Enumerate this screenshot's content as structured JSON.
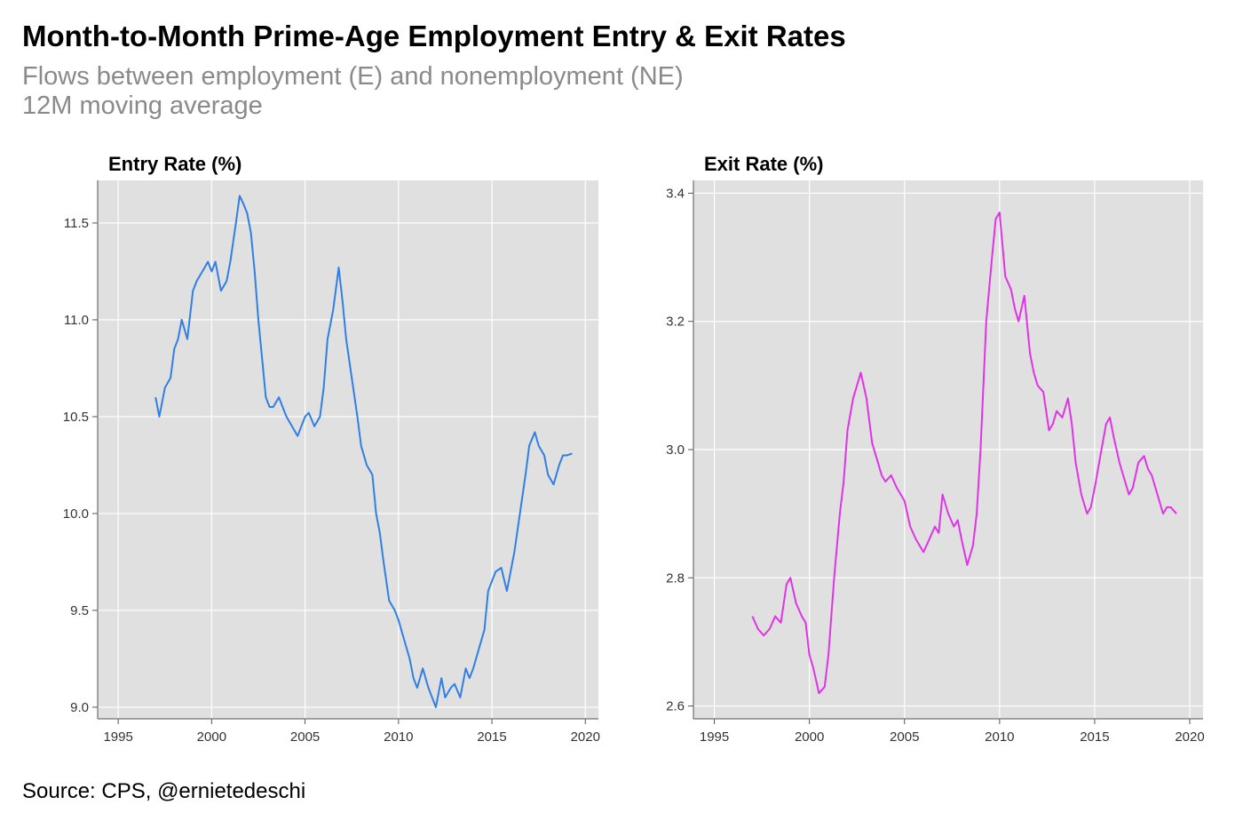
{
  "title": "Month-to-Month Prime-Age Employment Entry & Exit Rates",
  "subtitle_lines": [
    "Flows between employment (E) and nonemployment (NE)",
    "12M moving average"
  ],
  "source": "Source: CPS, @ernietedeschi",
  "chart_data": [
    {
      "type": "line",
      "title": "Entry Rate (%)",
      "xlabel": "",
      "ylabel": "",
      "xlim": [
        1993.9,
        2020.7
      ],
      "ylim": [
        8.94,
        11.72
      ],
      "xticks": [
        1995,
        2000,
        2005,
        2010,
        2015,
        2020
      ],
      "yticks": [
        9.0,
        9.5,
        10.0,
        10.5,
        11.0,
        11.5
      ],
      "ytick_labels": [
        "9.0",
        "9.5",
        "10.0",
        "10.5",
        "11.0",
        "11.5"
      ],
      "grid": true,
      "color": "#2f7fe6",
      "series": [
        {
          "x": [
            1997.0,
            1997.2,
            1997.5,
            1997.8,
            1998.0,
            1998.2,
            1998.4,
            1998.7,
            1999.0,
            1999.2,
            1999.5,
            1999.8,
            2000.0,
            2000.2,
            2000.5,
            2000.8,
            2001.0,
            2001.3,
            2001.5,
            2001.7,
            2001.9,
            2002.1,
            2002.3,
            2002.5,
            2002.7,
            2002.9,
            2003.1,
            2003.3,
            2003.6,
            2003.8,
            2004.0,
            2004.3,
            2004.6,
            2004.8,
            2005.0,
            2005.2,
            2005.5,
            2005.8,
            2006.0,
            2006.2,
            2006.5,
            2006.8,
            2007.0,
            2007.2,
            2007.5,
            2007.8,
            2008.0,
            2008.3,
            2008.6,
            2008.8,
            2009.0,
            2009.2,
            2009.5,
            2009.8,
            2010.0,
            2010.3,
            2010.6,
            2010.8,
            2011.0,
            2011.3,
            2011.6,
            2011.8,
            2012.0,
            2012.3,
            2012.5,
            2012.8,
            2013.0,
            2013.3,
            2013.6,
            2013.8,
            2014.0,
            2014.3,
            2014.6,
            2014.8,
            2015.0,
            2015.2,
            2015.5,
            2015.8,
            2016.0,
            2016.2,
            2016.5,
            2016.8,
            2017.0,
            2017.3,
            2017.5,
            2017.8,
            2018.0,
            2018.3,
            2018.6,
            2018.8,
            2019.0,
            2019.3
          ],
          "y": [
            10.6,
            10.5,
            10.65,
            10.7,
            10.85,
            10.9,
            11.0,
            10.9,
            11.15,
            11.2,
            11.25,
            11.3,
            11.25,
            11.3,
            11.15,
            11.2,
            11.3,
            11.5,
            11.64,
            11.6,
            11.55,
            11.45,
            11.25,
            11.0,
            10.8,
            10.6,
            10.55,
            10.55,
            10.6,
            10.55,
            10.5,
            10.45,
            10.4,
            10.45,
            10.5,
            10.52,
            10.45,
            10.5,
            10.65,
            10.9,
            11.05,
            11.27,
            11.1,
            10.9,
            10.7,
            10.5,
            10.35,
            10.25,
            10.2,
            10.0,
            9.9,
            9.75,
            9.55,
            9.5,
            9.45,
            9.35,
            9.25,
            9.15,
            9.1,
            9.2,
            9.1,
            9.05,
            9.0,
            9.15,
            9.05,
            9.1,
            9.12,
            9.05,
            9.2,
            9.15,
            9.2,
            9.3,
            9.4,
            9.6,
            9.65,
            9.7,
            9.72,
            9.6,
            9.7,
            9.8,
            10.0,
            10.2,
            10.35,
            10.42,
            10.35,
            10.3,
            10.2,
            10.15,
            10.25,
            10.3,
            10.3,
            10.31
          ]
        }
      ]
    },
    {
      "type": "line",
      "title": "Exit Rate (%)",
      "xlabel": "",
      "ylabel": "",
      "xlim": [
        1993.9,
        2020.7
      ],
      "ylim": [
        2.58,
        3.42
      ],
      "xticks": [
        1995,
        2000,
        2005,
        2010,
        2015,
        2020
      ],
      "yticks": [
        2.6,
        2.8,
        3.0,
        3.2,
        3.4
      ],
      "ytick_labels": [
        "2.6",
        "2.8",
        "3.0",
        "3.2",
        "3.4"
      ],
      "grid": true,
      "color": "#e033e8",
      "series": [
        {
          "x": [
            1997.0,
            1997.3,
            1997.6,
            1997.9,
            1998.2,
            1998.5,
            1998.8,
            1999.0,
            1999.3,
            1999.6,
            1999.8,
            2000.0,
            2000.2,
            2000.5,
            2000.8,
            2001.0,
            2001.3,
            2001.6,
            2001.8,
            2002.0,
            2002.3,
            2002.5,
            2002.7,
            2003.0,
            2003.3,
            2003.6,
            2003.8,
            2004.0,
            2004.3,
            2004.6,
            2004.8,
            2005.0,
            2005.3,
            2005.6,
            2005.8,
            2006.0,
            2006.3,
            2006.6,
            2006.8,
            2007.0,
            2007.3,
            2007.6,
            2007.8,
            2008.0,
            2008.3,
            2008.6,
            2008.8,
            2009.0,
            2009.3,
            2009.6,
            2009.8,
            2010.0,
            2010.3,
            2010.6,
            2010.8,
            2011.0,
            2011.3,
            2011.6,
            2011.8,
            2012.0,
            2012.3,
            2012.6,
            2012.8,
            2013.0,
            2013.3,
            2013.6,
            2013.8,
            2014.0,
            2014.3,
            2014.6,
            2014.8,
            2015.0,
            2015.3,
            2015.6,
            2015.8,
            2016.0,
            2016.3,
            2016.6,
            2016.8,
            2017.0,
            2017.3,
            2017.6,
            2017.8,
            2018.0,
            2018.3,
            2018.6,
            2018.8,
            2019.0,
            2019.3
          ],
          "y": [
            2.74,
            2.72,
            2.71,
            2.72,
            2.74,
            2.73,
            2.79,
            2.8,
            2.76,
            2.74,
            2.73,
            2.68,
            2.66,
            2.62,
            2.63,
            2.68,
            2.8,
            2.9,
            2.95,
            3.03,
            3.08,
            3.1,
            3.12,
            3.08,
            3.01,
            2.98,
            2.96,
            2.95,
            2.96,
            2.94,
            2.93,
            2.92,
            2.88,
            2.86,
            2.85,
            2.84,
            2.86,
            2.88,
            2.87,
            2.93,
            2.9,
            2.88,
            2.89,
            2.86,
            2.82,
            2.85,
            2.9,
            3.0,
            3.2,
            3.3,
            3.36,
            3.37,
            3.27,
            3.25,
            3.22,
            3.2,
            3.24,
            3.15,
            3.12,
            3.1,
            3.09,
            3.03,
            3.04,
            3.06,
            3.05,
            3.08,
            3.04,
            2.98,
            2.93,
            2.9,
            2.91,
            2.94,
            2.99,
            3.04,
            3.05,
            3.02,
            2.98,
            2.95,
            2.93,
            2.94,
            2.98,
            2.99,
            2.97,
            2.96,
            2.93,
            2.9,
            2.91,
            2.91,
            2.9
          ]
        }
      ]
    }
  ]
}
